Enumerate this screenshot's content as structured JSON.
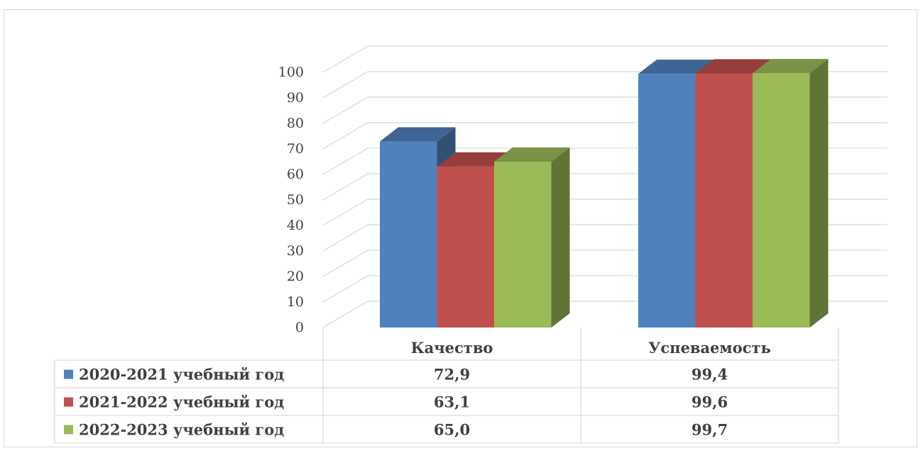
{
  "chart_data": {
    "type": "bar",
    "style": "3d-clustered-column-with-data-table",
    "categories": [
      "Качество",
      "Успеваемость"
    ],
    "series": [
      {
        "name": "2020-2021 учебный год",
        "values": [
          72.9,
          99.4
        ],
        "value_labels": [
          "72,9",
          "99,4"
        ],
        "color": "#4f81bd"
      },
      {
        "name": "2021-2022 учебный год",
        "values": [
          63.1,
          99.6
        ],
        "value_labels": [
          "63,1",
          "99,6"
        ],
        "color": "#c0504d"
      },
      {
        "name": "2022-2023 учебный год",
        "values": [
          65.0,
          99.7
        ],
        "value_labels": [
          "65,0",
          "99,7"
        ],
        "color": "#9bbb59"
      }
    ],
    "y_ticks": [
      "0",
      "10",
      "20",
      "30",
      "40",
      "50",
      "60",
      "70",
      "80",
      "90",
      "100"
    ],
    "ylim": [
      0,
      100
    ],
    "grid": true,
    "legend": "data-table-left",
    "title": "",
    "xlabel": "",
    "ylabel": ""
  }
}
